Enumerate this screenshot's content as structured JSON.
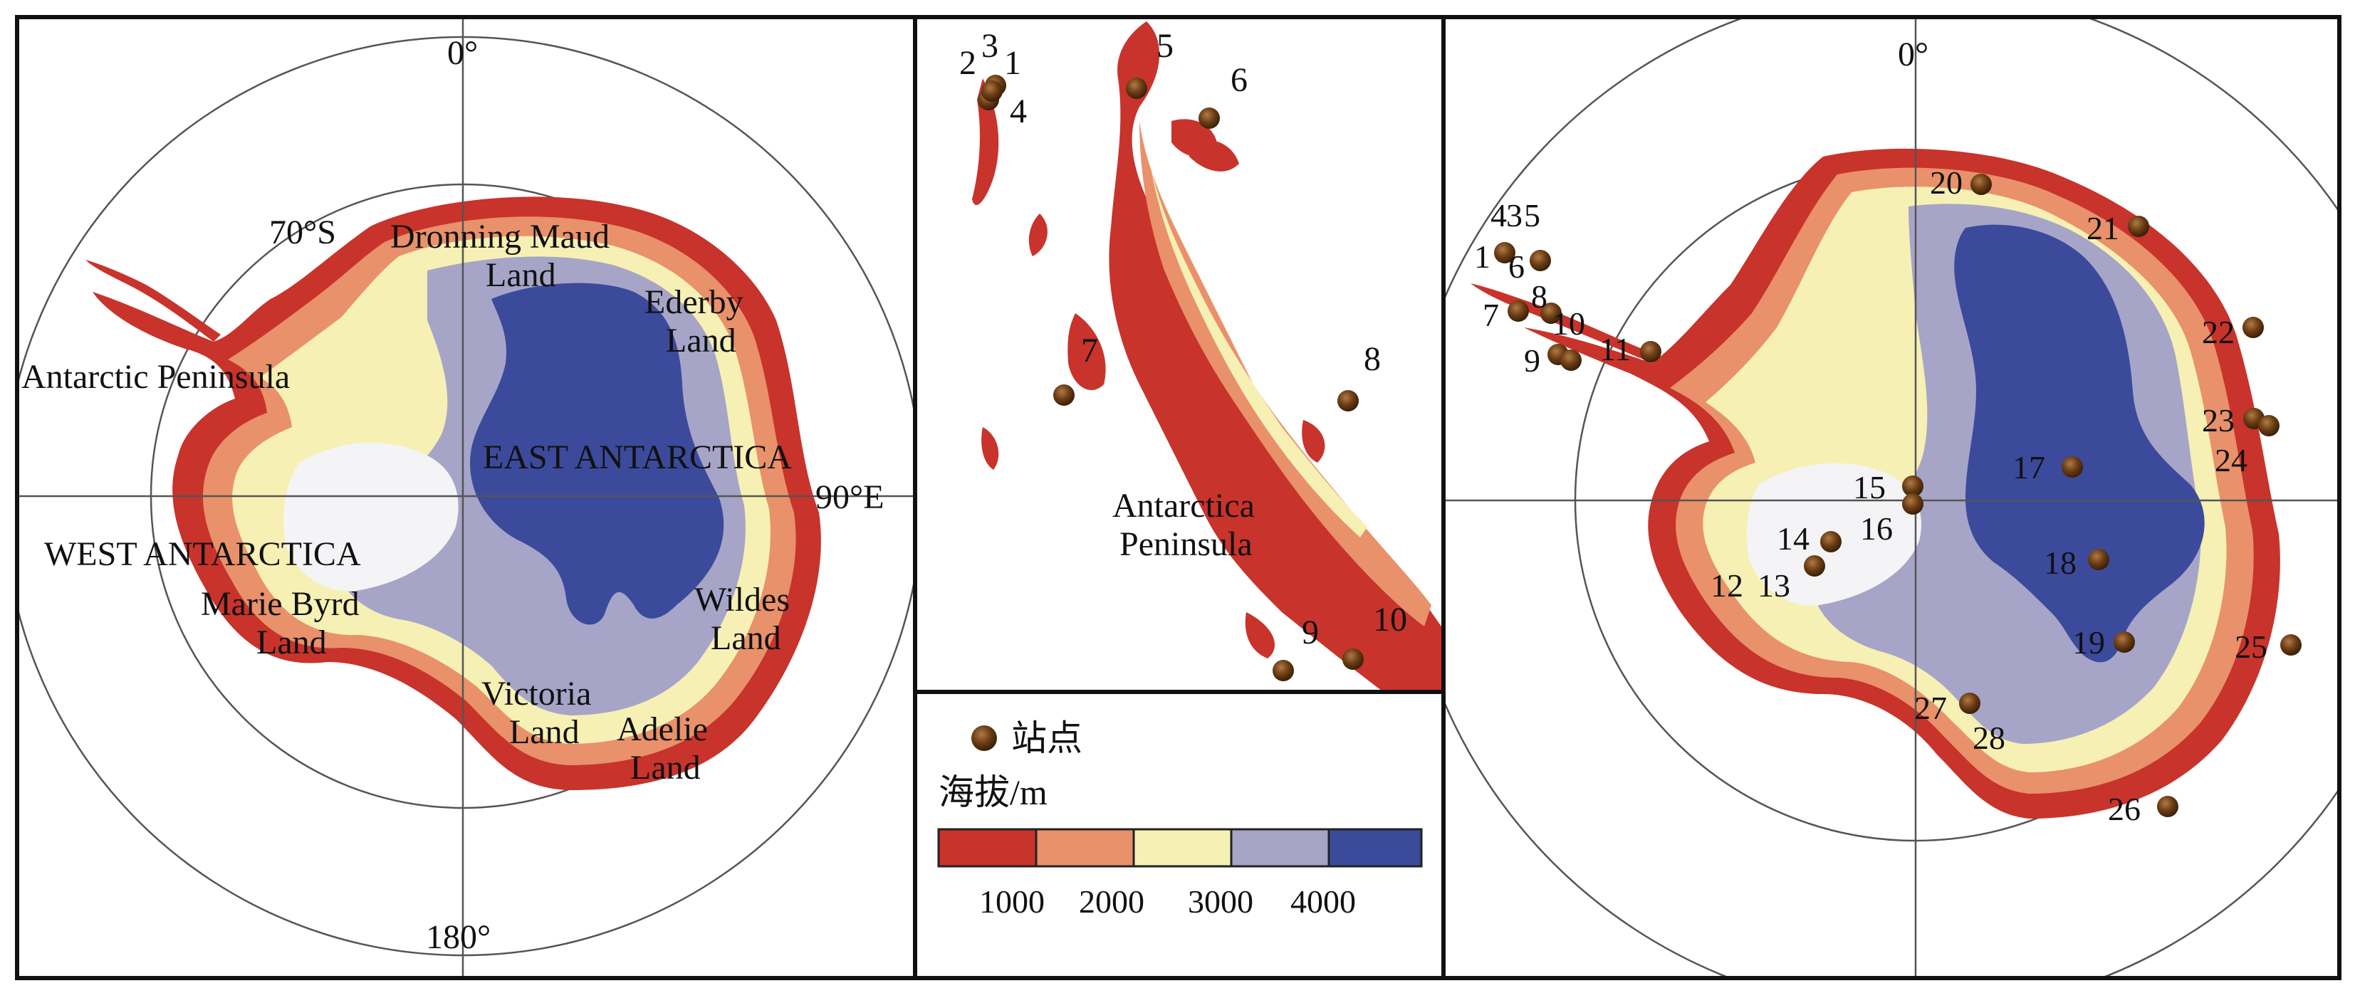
{
  "left_map": {
    "labels": {
      "lon0": "0°",
      "lon180": "180°",
      "lon90e": "90°E",
      "lat70s": "70°S",
      "dronning1": "Dronning Maud",
      "dronning2": "Land",
      "ederby1": "Ederby",
      "ederby2": "Land",
      "peninsula": "Antarctic Peninsula",
      "east": "EAST ANTARCTICA",
      "west": "WEST ANTARCTICA",
      "mariebyrd1": "Marie Byrd",
      "mariebyrd2": "Land",
      "wildes1": "Wildes",
      "wildes2": "Land",
      "victoria1": "Victoria",
      "victoria2": "Land",
      "adelie1": "Adelie",
      "adelie2": "Land"
    }
  },
  "middle_map": {
    "labels": {
      "peninsula1": "Antarctica",
      "peninsula2": "Peninsula"
    },
    "stations": [
      "1",
      "2",
      "3",
      "4",
      "5",
      "6",
      "7",
      "8",
      "9",
      "10"
    ]
  },
  "legend": {
    "station_label": "站点",
    "elevation_label": "海拔/m",
    "ticks": [
      "1000",
      "2000",
      "3000",
      "4000"
    ],
    "colors": [
      "#c8332b",
      "#e8916a",
      "#f7f0b4",
      "#a6a5c8",
      "#3c4a9c"
    ]
  },
  "right_map": {
    "labels": {
      "lon0": "0°"
    },
    "stations": [
      "1",
      "4",
      "3",
      "5",
      "6",
      "7",
      "8",
      "9",
      "10",
      "11",
      "12",
      "13",
      "14",
      "15",
      "16",
      "17",
      "18",
      "19",
      "20",
      "21",
      "22",
      "23",
      "24",
      "25",
      "26",
      "27",
      "28"
    ]
  },
  "colors": {
    "ice_low": "#c8332b",
    "ice_mid": "#e8916a",
    "ice_high": "#f7f0b4",
    "ice_upper": "#a6a5c8",
    "ice_top": "#3c4a9c",
    "station": "#5a3410"
  }
}
